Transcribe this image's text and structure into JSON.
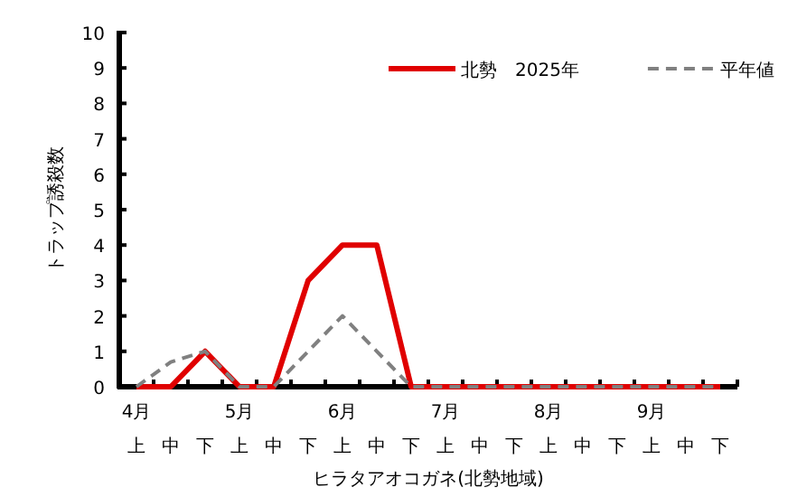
{
  "chart_data": {
    "type": "line",
    "xlabel": "ヒラタアオコガネ(北勢地域)",
    "ylabel": "トラップ誘殺数",
    "categories": [
      "4月上",
      "中",
      "下",
      "5月上",
      "中",
      "下",
      "6月上",
      "中",
      "下",
      "7月上",
      "中",
      "下",
      "8月上",
      "中",
      "下",
      "9月上",
      "中",
      "下"
    ],
    "series": [
      {
        "name": "北勢　2025年",
        "color": "#e00000",
        "line_style": "solid",
        "values": [
          0,
          0,
          1,
          0,
          0,
          3,
          4,
          4,
          0,
          0,
          0,
          0,
          0,
          0,
          0,
          0,
          0,
          0
        ]
      },
      {
        "name": "平年値",
        "color": "#808080",
        "line_style": "dashed",
        "values": [
          0,
          0.7,
          1,
          0,
          0,
          1,
          2,
          1,
          0,
          0,
          0,
          0,
          0,
          0,
          0,
          0,
          0,
          0
        ]
      }
    ],
    "ylim": [
      0,
      10
    ],
    "yticks": [
      0,
      1,
      2,
      3,
      4,
      5,
      6,
      7,
      8,
      9,
      10
    ],
    "legend": "top right",
    "grid": false,
    "marker": "none"
  }
}
